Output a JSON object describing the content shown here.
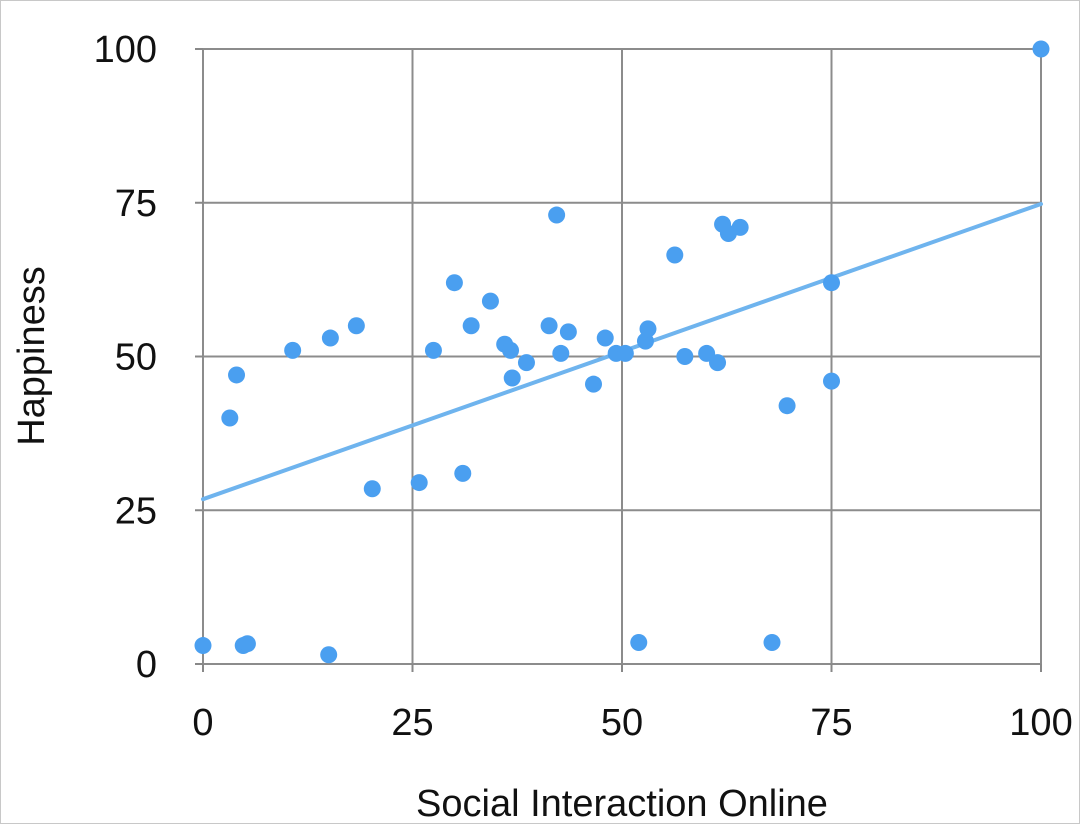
{
  "chart_data": {
    "type": "scatter",
    "title": "",
    "xlabel": "Social Interaction Online",
    "ylabel": "Happiness",
    "xlim": [
      0,
      100
    ],
    "ylim": [
      0,
      100
    ],
    "x_ticks": [
      "0",
      "25",
      "50",
      "75",
      "100"
    ],
    "y_ticks": [
      "0",
      "25",
      "50",
      "75",
      "100"
    ],
    "grid": true,
    "colors": {
      "points": "#4a9ff0",
      "trendline": "#6fb4ee",
      "grid": "#8c8c8c",
      "axis": "#888888"
    },
    "series": [
      {
        "points": [
          [
            0,
            3
          ],
          [
            3.2,
            40
          ],
          [
            4,
            47
          ],
          [
            4.8,
            3
          ],
          [
            5.3,
            3.3
          ],
          [
            10.7,
            51
          ],
          [
            15,
            1.5
          ],
          [
            15.2,
            53
          ],
          [
            18.3,
            55
          ],
          [
            20.2,
            28.5
          ],
          [
            25.8,
            29.5
          ],
          [
            27.5,
            51
          ],
          [
            30,
            62
          ],
          [
            31,
            31
          ],
          [
            32,
            55
          ],
          [
            34.3,
            59
          ],
          [
            36,
            52
          ],
          [
            36.7,
            51
          ],
          [
            36.9,
            46.5
          ],
          [
            38.6,
            49
          ],
          [
            41.3,
            55
          ],
          [
            42.2,
            73
          ],
          [
            42.7,
            50.5
          ],
          [
            43.6,
            54
          ],
          [
            46.6,
            45.5
          ],
          [
            48,
            53
          ],
          [
            49.3,
            50.5
          ],
          [
            50.4,
            50.5
          ],
          [
            52,
            3.5
          ],
          [
            52.8,
            52.5
          ],
          [
            53.1,
            54.5
          ],
          [
            56.3,
            66.5
          ],
          [
            57.5,
            50
          ],
          [
            60.1,
            50.5
          ],
          [
            61.4,
            49
          ],
          [
            62,
            71.5
          ],
          [
            62.7,
            70
          ],
          [
            64.1,
            71
          ],
          [
            67.9,
            3.5
          ],
          [
            69.7,
            42
          ],
          [
            75,
            62
          ],
          [
            75,
            46
          ],
          [
            100,
            100
          ]
        ]
      }
    ],
    "trendline": {
      "x": [
        0,
        100
      ],
      "y": [
        26.8,
        74.8
      ]
    }
  }
}
